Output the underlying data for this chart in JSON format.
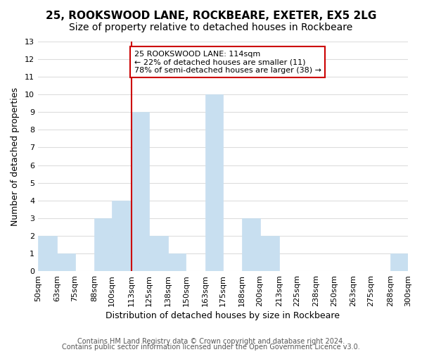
{
  "title1": "25, ROOKSWOOD LANE, ROCKBEARE, EXETER, EX5 2LG",
  "title2": "Size of property relative to detached houses in Rockbeare",
  "xlabel": "Distribution of detached houses by size in Rockbeare",
  "ylabel": "Number of detached properties",
  "bin_labels": [
    "50sqm",
    "63sqm",
    "75sqm",
    "88sqm",
    "100sqm",
    "113sqm",
    "125sqm",
    "138sqm",
    "150sqm",
    "163sqm",
    "175sqm",
    "188sqm",
    "200sqm",
    "213sqm",
    "225sqm",
    "238sqm",
    "250sqm",
    "263sqm",
    "275sqm",
    "288sqm",
    "300sqm"
  ],
  "bin_edges": [
    50,
    63,
    75,
    88,
    100,
    113,
    125,
    138,
    150,
    163,
    175,
    188,
    200,
    213,
    225,
    238,
    250,
    263,
    275,
    288,
    300
  ],
  "counts": [
    2,
    1,
    0,
    3,
    4,
    9,
    2,
    1,
    0,
    10,
    0,
    3,
    2,
    0,
    0,
    0,
    0,
    0,
    0,
    1
  ],
  "bar_color": "#c8dff0",
  "bar_edgecolor": "#c8dff0",
  "vline_x": 113,
  "vline_color": "#cc0000",
  "annotation_title": "25 ROOKSWOOD LANE: 114sqm",
  "annotation_line1": "← 22% of detached houses are smaller (11)",
  "annotation_line2": "78% of semi-detached houses are larger (38) →",
  "annotation_box_edgecolor": "#cc0000",
  "ylim": [
    0,
    13
  ],
  "yticks": [
    0,
    1,
    2,
    3,
    4,
    5,
    6,
    7,
    8,
    9,
    10,
    11,
    12,
    13
  ],
  "footer1": "Contains HM Land Registry data © Crown copyright and database right 2024.",
  "footer2": "Contains public sector information licensed under the Open Government Licence v3.0.",
  "bg_color": "#ffffff",
  "grid_color": "#dddddd",
  "title1_fontsize": 11,
  "title2_fontsize": 10,
  "axis_label_fontsize": 9,
  "tick_fontsize": 8,
  "footer_fontsize": 7
}
